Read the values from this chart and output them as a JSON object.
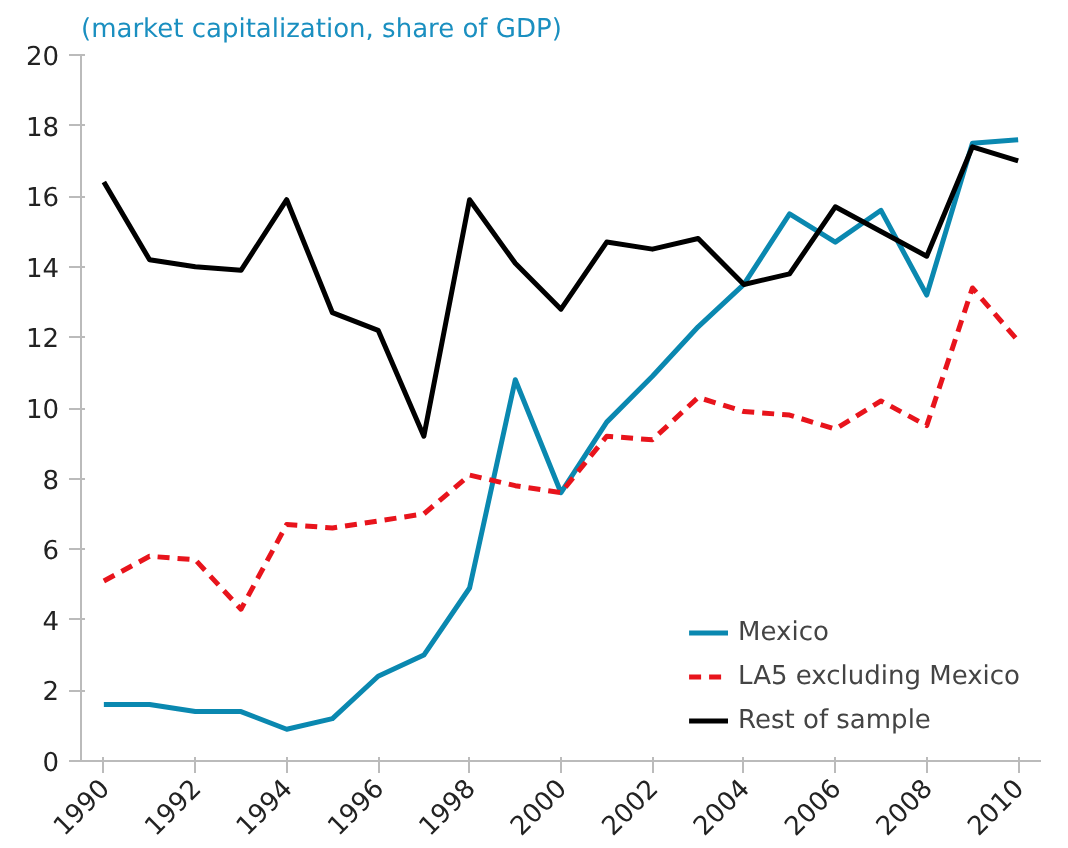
{
  "chart_data": {
    "type": "line",
    "subtitle": "(market capitalization, share of GDP)",
    "x": [
      1990,
      1991,
      1992,
      1993,
      1994,
      1995,
      1996,
      1997,
      1998,
      1999,
      2000,
      2001,
      2002,
      2003,
      2004,
      2005,
      2006,
      2007,
      2008,
      2009,
      2010
    ],
    "xlim": [
      1989.5,
      2010.5
    ],
    "xticks": [
      1990,
      1992,
      1994,
      1996,
      1998,
      2000,
      2002,
      2004,
      2006,
      2008,
      2010
    ],
    "ylim": [
      0,
      20
    ],
    "yticks": [
      0,
      2,
      4,
      6,
      8,
      10,
      12,
      14,
      16,
      18,
      20
    ],
    "grid": false,
    "legend": "bottom right",
    "marker": "none",
    "series": [
      {
        "name": "Mexico",
        "color": "#0a88b0",
        "line_style": "solid",
        "values": [
          1.6,
          1.6,
          1.4,
          1.4,
          0.9,
          1.2,
          2.4,
          3.0,
          4.9,
          10.8,
          7.6,
          9.6,
          10.9,
          12.3,
          13.5,
          15.5,
          14.7,
          15.6,
          13.2,
          17.5,
          17.6
        ]
      },
      {
        "name": "LA5 excluding Mexico",
        "color": "#e8141c",
        "line_style": "dashed",
        "values": [
          5.1,
          5.8,
          5.7,
          4.3,
          6.7,
          6.6,
          6.8,
          7.0,
          8.1,
          7.8,
          7.6,
          9.2,
          9.1,
          10.3,
          9.9,
          9.8,
          9.4,
          10.2,
          9.5,
          13.4,
          11.9
        ]
      },
      {
        "name": "Rest of sample",
        "color": "#000000",
        "line_style": "solid",
        "values": [
          16.4,
          14.2,
          14.0,
          13.9,
          15.9,
          12.7,
          12.2,
          9.2,
          15.9,
          14.1,
          12.8,
          14.7,
          14.5,
          14.8,
          13.5,
          13.8,
          15.7,
          15.0,
          14.3,
          17.4,
          17.0
        ]
      }
    ]
  }
}
